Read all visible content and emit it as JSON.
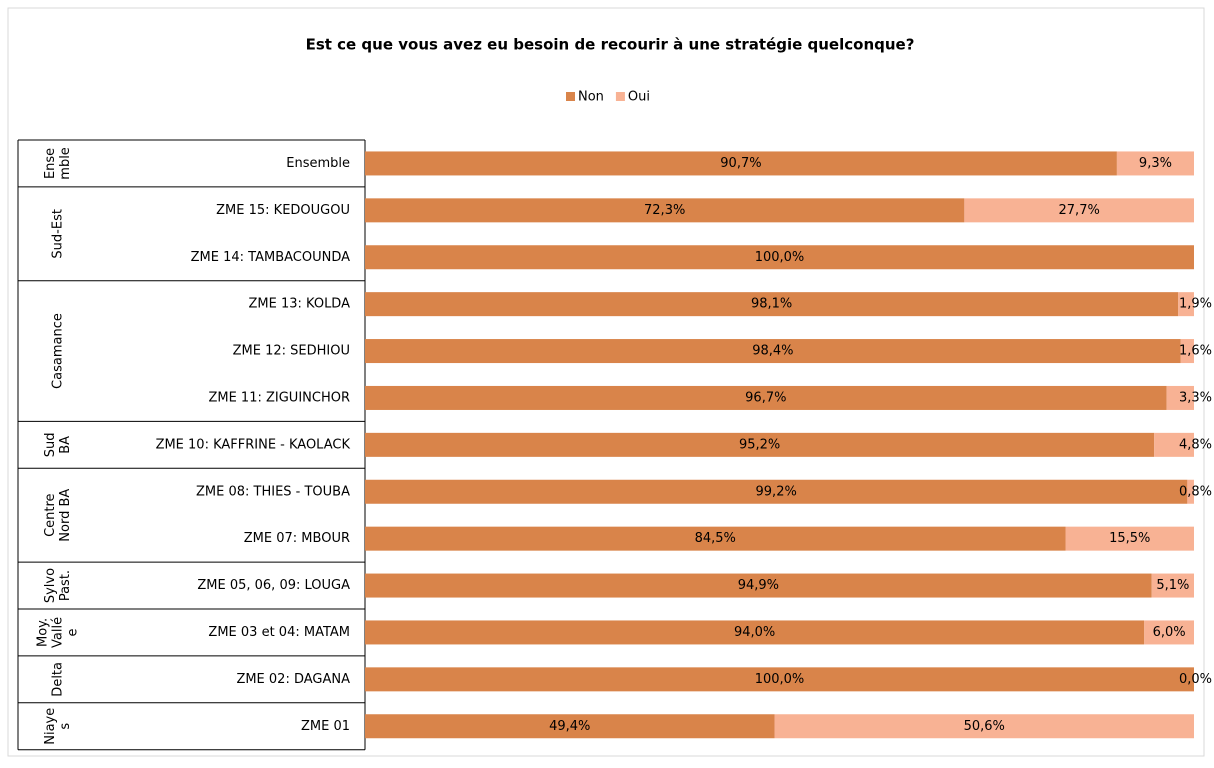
{
  "chart_data": {
    "type": "stacked-bar-horizontal",
    "title": "Est ce que vous avez eu besoin de recourir à une stratégie quelconque?",
    "groups": [
      {
        "name": [
          "Ense",
          "mble"
        ],
        "categories": [
          "Ensemble"
        ]
      },
      {
        "name": [
          "Sud-Est"
        ],
        "categories": [
          "ZME 15: KEDOUGOU",
          "ZME 14: TAMBACOUNDA"
        ]
      },
      {
        "name": [
          "Casamance"
        ],
        "categories": [
          "ZME 13: KOLDA",
          "ZME 12: SEDHIOU",
          "ZME 11: ZIGUINCHOR"
        ]
      },
      {
        "name": [
          "Sud",
          "BA"
        ],
        "categories": [
          "ZME 10: KAFFRINE - KAOLACK"
        ]
      },
      {
        "name": [
          "Centre",
          "Nord BA"
        ],
        "categories": [
          "ZME 08: THIES - TOUBA",
          "ZME 07: MBOUR"
        ]
      },
      {
        "name": [
          "Sylvo",
          "Past."
        ],
        "categories": [
          "ZME 05, 06, 09: LOUGA"
        ]
      },
      {
        "name": [
          "Moy.",
          "Vallé",
          "e"
        ],
        "categories": [
          "ZME 03 et 04: MATAM"
        ]
      },
      {
        "name": [
          "Delta"
        ],
        "categories": [
          "ZME 02: DAGANA"
        ]
      },
      {
        "name": [
          "Niaye",
          "s"
        ],
        "categories": [
          "ZME 01"
        ]
      }
    ],
    "xlim": [
      0,
      100
    ],
    "series": [
      {
        "name": "Non",
        "color": "#d9844a",
        "values": [
          90.7,
          72.3,
          100.0,
          98.1,
          98.4,
          96.7,
          95.2,
          99.2,
          84.5,
          94.9,
          94.0,
          100.0,
          49.4
        ],
        "value_labels": [
          "90,7%",
          "72,3%",
          "100,0%",
          "98,1%",
          "98,4%",
          "96,7%",
          "95,2%",
          "99,2%",
          "84,5%",
          "94,9%",
          "94,0%",
          "100,0%",
          "49,4%"
        ]
      },
      {
        "name": "Oui",
        "color": "#f8b294",
        "values": [
          9.3,
          27.7,
          null,
          1.9,
          1.6,
          3.3,
          4.8,
          0.8,
          15.5,
          5.1,
          6.0,
          0.0,
          50.6
        ],
        "value_labels": [
          "9,3%",
          "27,7%",
          null,
          "1,9%",
          "1,6%",
          "3,3%",
          "4,8%",
          "0,8%",
          "15,5%",
          "5,1%",
          "6,0%",
          "0,0%",
          "50,6%"
        ]
      }
    ]
  }
}
